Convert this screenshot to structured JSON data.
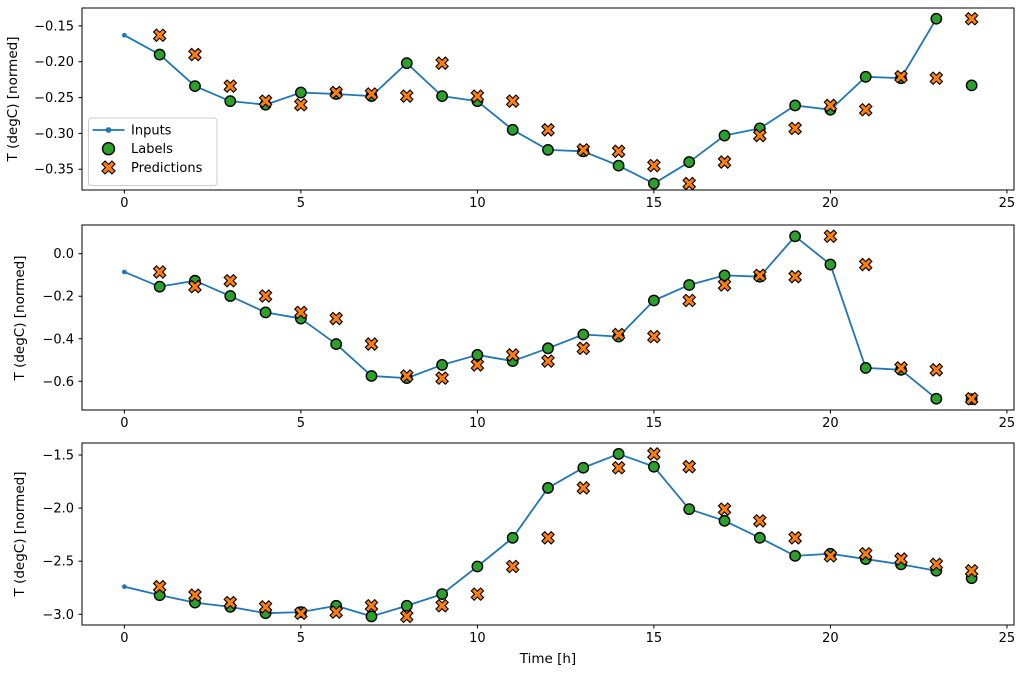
{
  "figure": {
    "background": "#ffffff",
    "xlabel": "Time [h]",
    "ylabel": "T (degC) [normed]"
  },
  "colors": {
    "inputs_line": "#1f77b4",
    "labels_marker": "#2ca02c",
    "predictions_marker": "#ff7f0e",
    "marker_edge": "#000000",
    "spine": "#000000",
    "legend_border": "#cccccc",
    "legend_background": "#ffffff"
  },
  "chart_data": [
    {
      "type": "line",
      "title": "",
      "xlabel": "",
      "ylabel": "T (degC) [normed]",
      "xlim": [
        -1.2,
        25.2
      ],
      "ylim": [
        -0.379,
        -0.125
      ],
      "xticks": [
        0,
        5,
        10,
        15,
        20,
        25
      ],
      "xtick_labels": [
        "0",
        "5",
        "10",
        "15",
        "20",
        "25"
      ],
      "yticks": [
        -0.15,
        -0.2,
        -0.25,
        -0.3,
        -0.35
      ],
      "ytick_labels": [
        "−0.15",
        "−0.20",
        "−0.25",
        "−0.30",
        "−0.35"
      ],
      "grid": false,
      "legend": {
        "visible": true,
        "location": "center left",
        "entries": [
          "Inputs",
          "Labels",
          "Predictions"
        ]
      },
      "series": [
        {
          "name": "Inputs",
          "marker": "dot-line",
          "color": "#1f77b4",
          "x": [
            0,
            1,
            2,
            3,
            4,
            5,
            6,
            7,
            8,
            9,
            10,
            11,
            12,
            13,
            14,
            15,
            16,
            17,
            18,
            19,
            20,
            21,
            22,
            23
          ],
          "y": [
            -0.163,
            -0.19,
            -0.234,
            -0.255,
            -0.26,
            -0.243,
            -0.245,
            -0.248,
            -0.202,
            -0.248,
            -0.255,
            -0.295,
            -0.323,
            -0.325,
            -0.345,
            -0.37,
            -0.34,
            -0.303,
            -0.293,
            -0.261,
            -0.267,
            -0.221,
            -0.223,
            -0.14
          ]
        },
        {
          "name": "Labels",
          "marker": "filled-circle",
          "color": "#2ca02c",
          "edge": "#000000",
          "x": [
            1,
            2,
            3,
            4,
            5,
            6,
            7,
            8,
            9,
            10,
            11,
            12,
            13,
            14,
            15,
            16,
            17,
            18,
            19,
            20,
            21,
            22,
            23,
            24
          ],
          "y": [
            -0.19,
            -0.234,
            -0.255,
            -0.26,
            -0.243,
            -0.245,
            -0.248,
            -0.202,
            -0.248,
            -0.255,
            -0.295,
            -0.323,
            -0.325,
            -0.345,
            -0.37,
            -0.34,
            -0.303,
            -0.293,
            -0.261,
            -0.267,
            -0.221,
            -0.223,
            -0.14,
            -0.233
          ]
        },
        {
          "name": "Predictions",
          "marker": "x-cross",
          "color": "#ff7f0e",
          "edge": "#000000",
          "x": [
            1,
            2,
            3,
            4,
            5,
            6,
            7,
            8,
            9,
            10,
            11,
            12,
            13,
            14,
            15,
            16,
            17,
            18,
            19,
            20,
            21,
            22,
            23,
            24
          ],
          "y": [
            -0.163,
            -0.19,
            -0.234,
            -0.255,
            -0.26,
            -0.243,
            -0.245,
            -0.248,
            -0.202,
            -0.248,
            -0.255,
            -0.295,
            -0.323,
            -0.325,
            -0.345,
            -0.37,
            -0.34,
            -0.303,
            -0.293,
            -0.261,
            -0.267,
            -0.221,
            -0.223,
            -0.14
          ]
        }
      ]
    },
    {
      "type": "line",
      "title": "",
      "xlabel": "",
      "ylabel": "T (degC) [normed]",
      "xlim": [
        -1.2,
        25.2
      ],
      "ylim": [
        -0.735,
        0.135
      ],
      "xticks": [
        0,
        5,
        10,
        15,
        20,
        25
      ],
      "xtick_labels": [
        "0",
        "5",
        "10",
        "15",
        "20",
        "25"
      ],
      "yticks": [
        0.0,
        -0.2,
        -0.4,
        -0.6
      ],
      "ytick_labels": [
        "0.0",
        "−0.2",
        "−0.4",
        "−0.6"
      ],
      "grid": false,
      "legend": {
        "visible": false,
        "entries": []
      },
      "series": [
        {
          "name": "Inputs",
          "marker": "dot-line",
          "color": "#1f77b4",
          "x": [
            0,
            1,
            2,
            3,
            4,
            5,
            6,
            7,
            8,
            9,
            10,
            11,
            12,
            13,
            14,
            15,
            16,
            17,
            18,
            19,
            20,
            21,
            22,
            23
          ],
          "y": [
            -0.086,
            -0.155,
            -0.127,
            -0.199,
            -0.276,
            -0.305,
            -0.425,
            -0.575,
            -0.585,
            -0.523,
            -0.476,
            -0.505,
            -0.445,
            -0.38,
            -0.39,
            -0.22,
            -0.147,
            -0.102,
            -0.108,
            0.082,
            -0.051,
            -0.537,
            -0.546,
            -0.682
          ]
        },
        {
          "name": "Labels",
          "marker": "filled-circle",
          "color": "#2ca02c",
          "edge": "#000000",
          "x": [
            1,
            2,
            3,
            4,
            5,
            6,
            7,
            8,
            9,
            10,
            11,
            12,
            13,
            14,
            15,
            16,
            17,
            18,
            19,
            20,
            21,
            22,
            23,
            24
          ],
          "y": [
            -0.155,
            -0.127,
            -0.199,
            -0.276,
            -0.305,
            -0.425,
            -0.575,
            -0.585,
            -0.523,
            -0.476,
            -0.505,
            -0.445,
            -0.38,
            -0.39,
            -0.22,
            -0.147,
            -0.102,
            -0.108,
            0.082,
            -0.051,
            -0.537,
            -0.546,
            -0.682,
            -0.684
          ]
        },
        {
          "name": "Predictions",
          "marker": "x-cross",
          "color": "#ff7f0e",
          "edge": "#000000",
          "x": [
            1,
            2,
            3,
            4,
            5,
            6,
            7,
            8,
            9,
            10,
            11,
            12,
            13,
            14,
            15,
            16,
            17,
            18,
            19,
            20,
            21,
            22,
            23,
            24
          ],
          "y": [
            -0.086,
            -0.155,
            -0.127,
            -0.199,
            -0.276,
            -0.305,
            -0.425,
            -0.575,
            -0.585,
            -0.523,
            -0.476,
            -0.505,
            -0.445,
            -0.38,
            -0.39,
            -0.22,
            -0.147,
            -0.102,
            -0.108,
            0.082,
            -0.051,
            -0.537,
            -0.546,
            -0.682
          ]
        }
      ]
    },
    {
      "type": "line",
      "title": "",
      "xlabel": "Time [h]",
      "ylabel": "T (degC) [normed]",
      "xlim": [
        -1.2,
        25.2
      ],
      "ylim": [
        -3.101,
        -1.387
      ],
      "xticks": [
        0,
        5,
        10,
        15,
        20,
        25
      ],
      "xtick_labels": [
        "0",
        "5",
        "10",
        "15",
        "20",
        "25"
      ],
      "yticks": [
        -1.5,
        -2.0,
        -2.5,
        -3.0
      ],
      "ytick_labels": [
        "−1.5",
        "−2.0",
        "−2.5",
        "−3.0"
      ],
      "grid": false,
      "legend": {
        "visible": false,
        "entries": []
      },
      "series": [
        {
          "name": "Inputs",
          "marker": "dot-line",
          "color": "#1f77b4",
          "x": [
            0,
            1,
            2,
            3,
            4,
            5,
            6,
            7,
            8,
            9,
            10,
            11,
            12,
            13,
            14,
            15,
            16,
            17,
            18,
            19,
            20,
            21,
            22,
            23
          ],
          "y": [
            -2.74,
            -2.82,
            -2.89,
            -2.93,
            -2.99,
            -2.98,
            -2.92,
            -3.02,
            -2.92,
            -2.81,
            -2.55,
            -2.28,
            -1.81,
            -1.62,
            -1.49,
            -1.61,
            -2.01,
            -2.12,
            -2.28,
            -2.45,
            -2.43,
            -2.48,
            -2.53,
            -2.59
          ]
        },
        {
          "name": "Labels",
          "marker": "filled-circle",
          "color": "#2ca02c",
          "edge": "#000000",
          "x": [
            1,
            2,
            3,
            4,
            5,
            6,
            7,
            8,
            9,
            10,
            11,
            12,
            13,
            14,
            15,
            16,
            17,
            18,
            19,
            20,
            21,
            22,
            23,
            24
          ],
          "y": [
            -2.82,
            -2.89,
            -2.93,
            -2.99,
            -2.98,
            -2.92,
            -3.02,
            -2.92,
            -2.81,
            -2.55,
            -2.28,
            -1.81,
            -1.62,
            -1.49,
            -1.61,
            -2.01,
            -2.12,
            -2.28,
            -2.45,
            -2.43,
            -2.48,
            -2.53,
            -2.59,
            -2.66
          ]
        },
        {
          "name": "Predictions",
          "marker": "x-cross",
          "color": "#ff7f0e",
          "edge": "#000000",
          "x": [
            1,
            2,
            3,
            4,
            5,
            6,
            7,
            8,
            9,
            10,
            11,
            12,
            13,
            14,
            15,
            16,
            17,
            18,
            19,
            20,
            21,
            22,
            23,
            24
          ],
          "y": [
            -2.74,
            -2.82,
            -2.89,
            -2.93,
            -2.99,
            -2.98,
            -2.92,
            -3.02,
            -2.92,
            -2.81,
            -2.55,
            -2.28,
            -1.81,
            -1.62,
            -1.49,
            -1.61,
            -2.01,
            -2.12,
            -2.28,
            -2.45,
            -2.43,
            -2.48,
            -2.53,
            -2.59
          ]
        }
      ]
    }
  ]
}
